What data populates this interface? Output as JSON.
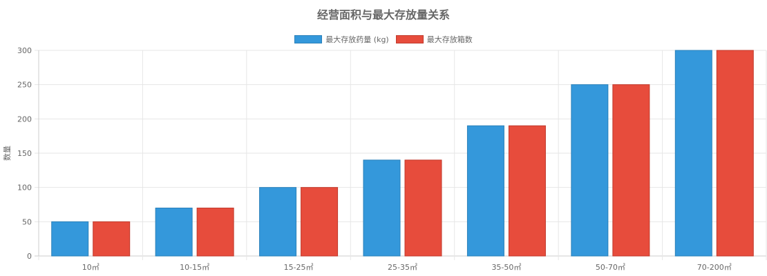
{
  "chart_data": {
    "type": "bar",
    "title": "经营面积与最大存放量关系",
    "ylabel": "数量",
    "xlabel": "",
    "ylim": [
      0,
      300
    ],
    "yticks": [
      0,
      50,
      100,
      150,
      200,
      250,
      300
    ],
    "categories": [
      "10㎡",
      "10-15㎡",
      "15-25㎡",
      "25-35㎡",
      "35-50㎡",
      "50-70㎡",
      "70-200㎡"
    ],
    "series": [
      {
        "name": "最大存放药量 (kg)",
        "color": "#3498db",
        "border": "#2a80b9",
        "values": [
          50,
          70,
          100,
          140,
          190,
          250,
          300
        ]
      },
      {
        "name": "最大存放箱数",
        "color": "#e74c3c",
        "border": "#c0392b",
        "values": [
          50,
          70,
          100,
          140,
          190,
          250,
          300
        ]
      }
    ],
    "grid": true,
    "legend_position": "top-center"
  }
}
